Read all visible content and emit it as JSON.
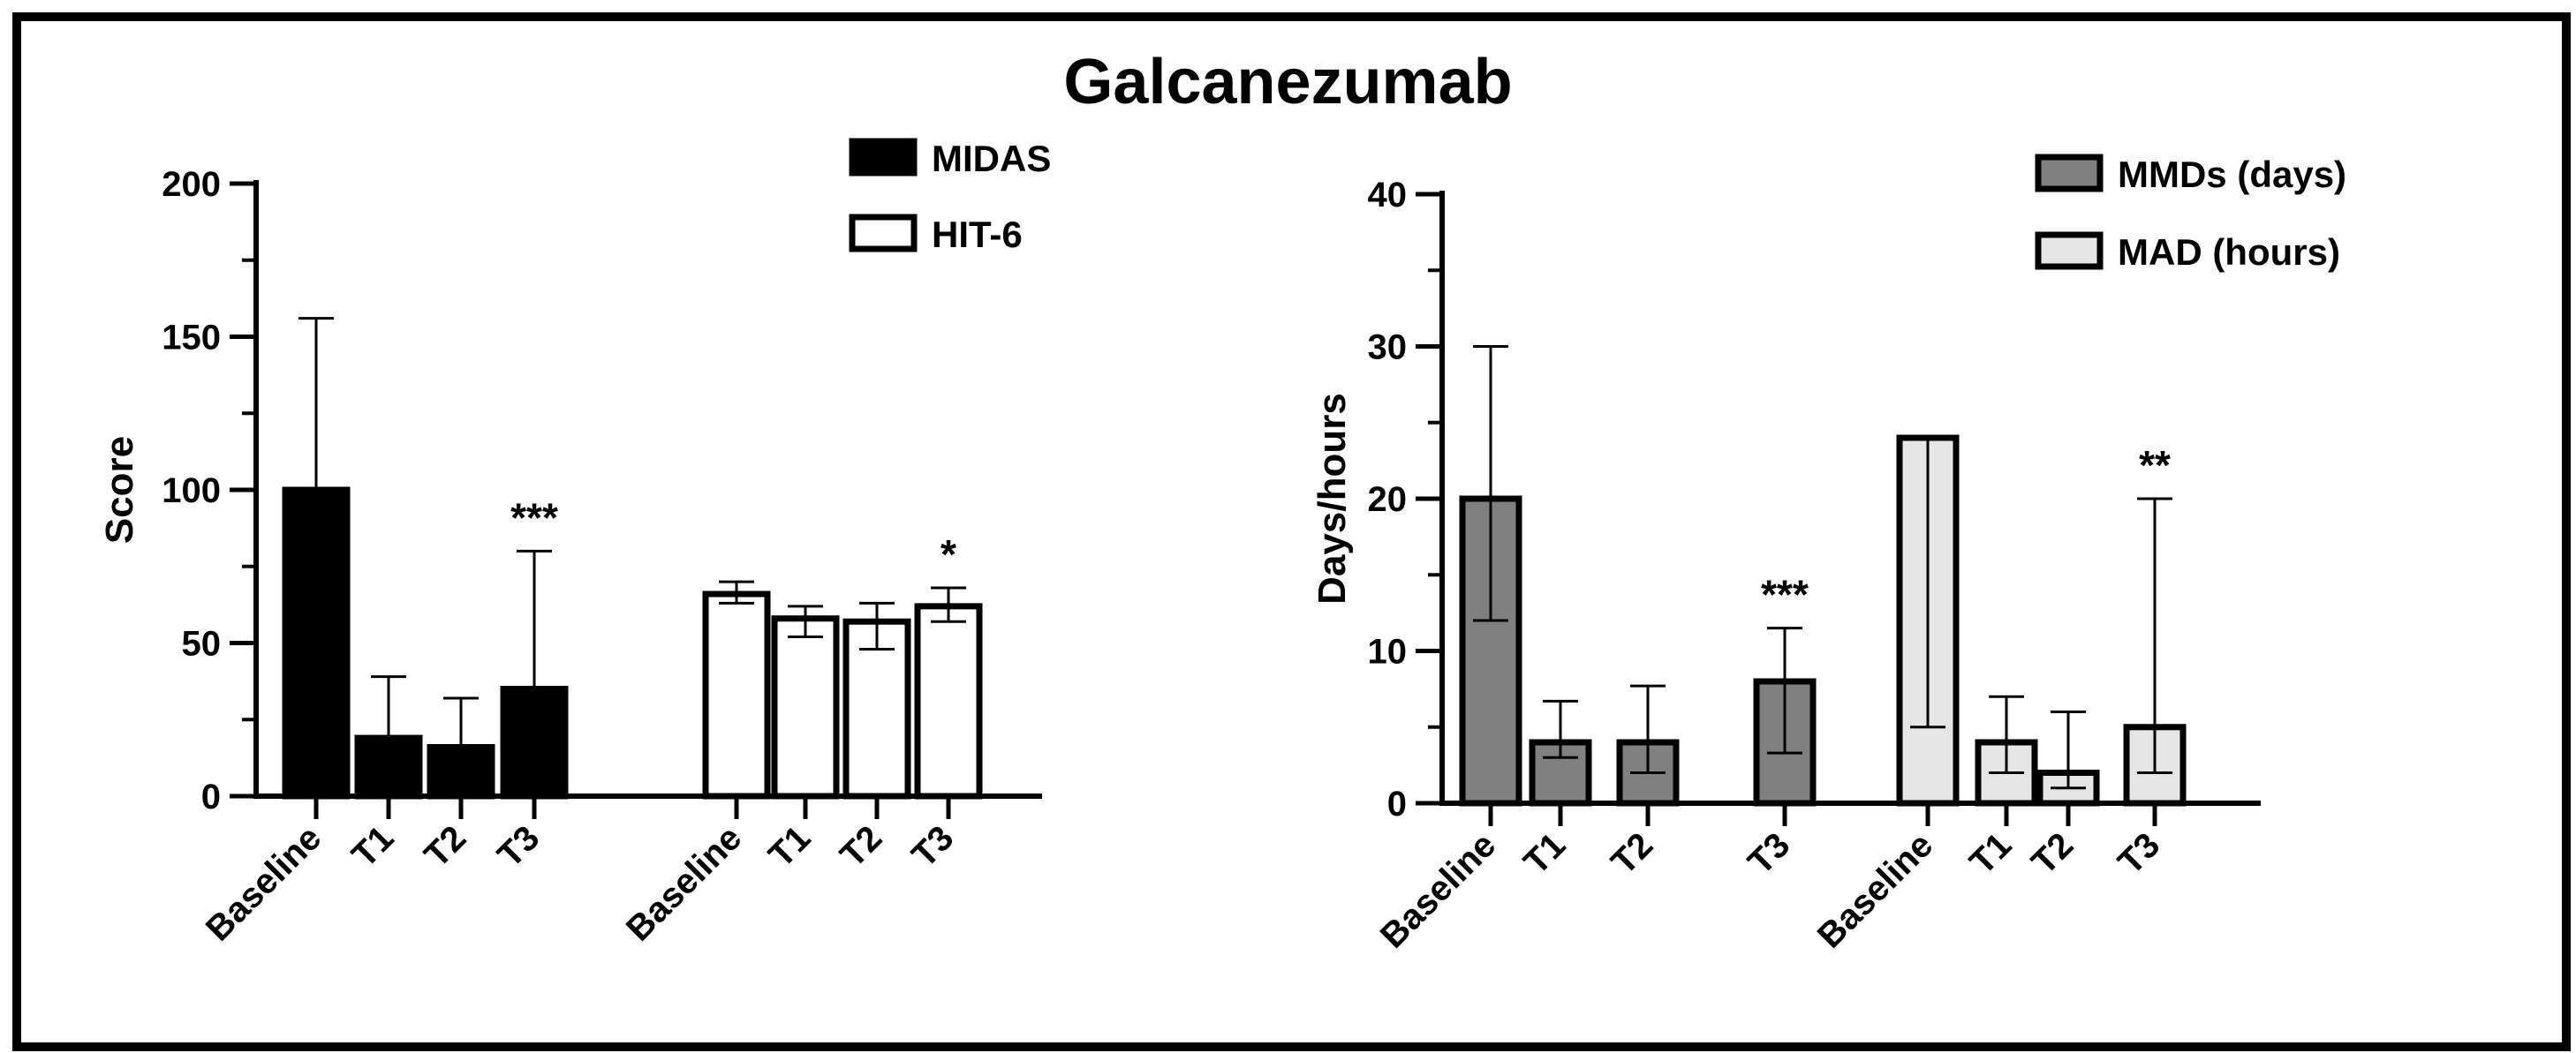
{
  "title": "Galcanezumab",
  "chart_data": [
    {
      "type": "bar",
      "title": "",
      "xlabel": "",
      "ylabel": "Score",
      "ylim": [
        0,
        200
      ],
      "yticks": [
        0,
        50,
        100,
        150,
        200
      ],
      "legend_position": "top-right",
      "groups": [
        {
          "name": "MIDAS",
          "fill": "#000000",
          "categories": [
            "Baseline",
            "T1",
            "T2",
            "T3"
          ],
          "values": [
            100,
            19,
            16,
            35
          ],
          "err_low": [
            null,
            null,
            null,
            null
          ],
          "err_high": [
            156,
            39,
            32,
            80
          ],
          "significance": [
            "",
            "",
            "",
            "***"
          ]
        },
        {
          "name": "HIT-6",
          "fill": "#ffffff",
          "categories": [
            "Baseline",
            "T1",
            "T2",
            "T3"
          ],
          "values": [
            66,
            58,
            57,
            62
          ],
          "err_low": [
            63,
            52,
            48,
            57
          ],
          "err_high": [
            70,
            62,
            63,
            68
          ],
          "significance": [
            "",
            "",
            "",
            "*"
          ]
        }
      ]
    },
    {
      "type": "bar",
      "title": "",
      "xlabel": "",
      "ylabel": "Days/hours",
      "ylim": [
        0,
        40
      ],
      "yticks": [
        0,
        10,
        20,
        30,
        40
      ],
      "legend_position": "top-right",
      "groups": [
        {
          "name": "MMDs (days)",
          "fill": "#808080",
          "categories": [
            "Baseline",
            "T1",
            "T2",
            "T3"
          ],
          "values": [
            20,
            4,
            4,
            8
          ],
          "err_low": [
            12,
            3,
            2,
            3.3
          ],
          "err_high": [
            30,
            6.7,
            7.7,
            11.5
          ],
          "significance": [
            "",
            "",
            "",
            "***"
          ]
        },
        {
          "name": "MAD (hours)",
          "fill": "#e6e6e6",
          "categories": [
            "Baseline",
            "T1",
            "T2",
            "T3"
          ],
          "values": [
            24,
            4,
            2,
            5
          ],
          "err_low": [
            5,
            2,
            1,
            2
          ],
          "err_high": [
            24,
            7,
            6,
            20
          ],
          "significance": [
            "",
            "",
            "",
            "**"
          ]
        }
      ]
    }
  ]
}
